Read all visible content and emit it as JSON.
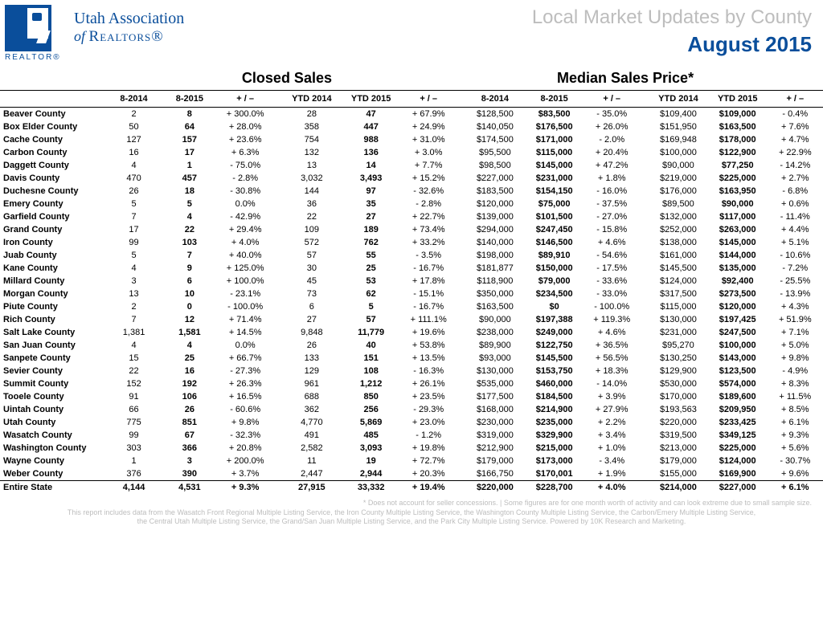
{
  "header": {
    "logo_caption": "REALTOR®",
    "assoc_line1": "Utah Association",
    "assoc_line2_of": "of ",
    "assoc_line2_r": "Realtors®",
    "title_right_1": "Local Market Updates by County",
    "title_right_2": "August 2015"
  },
  "sections": {
    "closed_sales": "Closed Sales",
    "median_price": "Median Sales Price*"
  },
  "columns": {
    "blank": "",
    "g1": [
      "8-2014",
      "8-2015",
      "+ / –"
    ],
    "g2": [
      "YTD 2014",
      "YTD 2015",
      "+ / –"
    ],
    "g3": [
      "8-2014",
      "8-2015",
      "+ / –"
    ],
    "g4": [
      "YTD 2014",
      "YTD 2015",
      "+ / –"
    ]
  },
  "rows": [
    {
      "n": "Beaver County",
      "a": [
        "2",
        "8",
        "+ 300.0%"
      ],
      "b": [
        "28",
        "47",
        "+ 67.9%"
      ],
      "c": [
        "$128,500",
        "$83,500",
        "- 35.0%"
      ],
      "d": [
        "$109,400",
        "$109,000",
        "- 0.4%"
      ]
    },
    {
      "n": "Box Elder County",
      "a": [
        "50",
        "64",
        "+ 28.0%"
      ],
      "b": [
        "358",
        "447",
        "+ 24.9%"
      ],
      "c": [
        "$140,050",
        "$176,500",
        "+ 26.0%"
      ],
      "d": [
        "$151,950",
        "$163,500",
        "+ 7.6%"
      ]
    },
    {
      "n": "Cache County",
      "a": [
        "127",
        "157",
        "+ 23.6%"
      ],
      "b": [
        "754",
        "988",
        "+ 31.0%"
      ],
      "c": [
        "$174,500",
        "$171,000",
        "- 2.0%"
      ],
      "d": [
        "$169,948",
        "$178,000",
        "+ 4.7%"
      ]
    },
    {
      "n": "Carbon County",
      "a": [
        "16",
        "17",
        "+ 6.3%"
      ],
      "b": [
        "132",
        "136",
        "+ 3.0%"
      ],
      "c": [
        "$95,500",
        "$115,000",
        "+ 20.4%"
      ],
      "d": [
        "$100,000",
        "$122,900",
        "+ 22.9%"
      ]
    },
    {
      "n": "Daggett County",
      "a": [
        "4",
        "1",
        "- 75.0%"
      ],
      "b": [
        "13",
        "14",
        "+ 7.7%"
      ],
      "c": [
        "$98,500",
        "$145,000",
        "+ 47.2%"
      ],
      "d": [
        "$90,000",
        "$77,250",
        "- 14.2%"
      ]
    },
    {
      "n": "Davis County",
      "a": [
        "470",
        "457",
        "- 2.8%"
      ],
      "b": [
        "3,032",
        "3,493",
        "+ 15.2%"
      ],
      "c": [
        "$227,000",
        "$231,000",
        "+ 1.8%"
      ],
      "d": [
        "$219,000",
        "$225,000",
        "+ 2.7%"
      ]
    },
    {
      "n": "Duchesne County",
      "a": [
        "26",
        "18",
        "- 30.8%"
      ],
      "b": [
        "144",
        "97",
        "- 32.6%"
      ],
      "c": [
        "$183,500",
        "$154,150",
        "- 16.0%"
      ],
      "d": [
        "$176,000",
        "$163,950",
        "- 6.8%"
      ]
    },
    {
      "n": "Emery County",
      "a": [
        "5",
        "5",
        "0.0%"
      ],
      "b": [
        "36",
        "35",
        "- 2.8%"
      ],
      "c": [
        "$120,000",
        "$75,000",
        "- 37.5%"
      ],
      "d": [
        "$89,500",
        "$90,000",
        "+ 0.6%"
      ]
    },
    {
      "n": "Garfield County",
      "a": [
        "7",
        "4",
        "- 42.9%"
      ],
      "b": [
        "22",
        "27",
        "+ 22.7%"
      ],
      "c": [
        "$139,000",
        "$101,500",
        "- 27.0%"
      ],
      "d": [
        "$132,000",
        "$117,000",
        "- 11.4%"
      ]
    },
    {
      "n": "Grand County",
      "a": [
        "17",
        "22",
        "+ 29.4%"
      ],
      "b": [
        "109",
        "189",
        "+ 73.4%"
      ],
      "c": [
        "$294,000",
        "$247,450",
        "- 15.8%"
      ],
      "d": [
        "$252,000",
        "$263,000",
        "+ 4.4%"
      ]
    },
    {
      "n": "Iron County",
      "a": [
        "99",
        "103",
        "+ 4.0%"
      ],
      "b": [
        "572",
        "762",
        "+ 33.2%"
      ],
      "c": [
        "$140,000",
        "$146,500",
        "+ 4.6%"
      ],
      "d": [
        "$138,000",
        "$145,000",
        "+ 5.1%"
      ]
    },
    {
      "n": "Juab County",
      "a": [
        "5",
        "7",
        "+ 40.0%"
      ],
      "b": [
        "57",
        "55",
        "- 3.5%"
      ],
      "c": [
        "$198,000",
        "$89,910",
        "- 54.6%"
      ],
      "d": [
        "$161,000",
        "$144,000",
        "- 10.6%"
      ]
    },
    {
      "n": "Kane County",
      "a": [
        "4",
        "9",
        "+ 125.0%"
      ],
      "b": [
        "30",
        "25",
        "- 16.7%"
      ],
      "c": [
        "$181,877",
        "$150,000",
        "- 17.5%"
      ],
      "d": [
        "$145,500",
        "$135,000",
        "- 7.2%"
      ]
    },
    {
      "n": "Millard County",
      "a": [
        "3",
        "6",
        "+ 100.0%"
      ],
      "b": [
        "45",
        "53",
        "+ 17.8%"
      ],
      "c": [
        "$118,900",
        "$79,000",
        "- 33.6%"
      ],
      "d": [
        "$124,000",
        "$92,400",
        "- 25.5%"
      ]
    },
    {
      "n": "Morgan County",
      "a": [
        "13",
        "10",
        "- 23.1%"
      ],
      "b": [
        "73",
        "62",
        "- 15.1%"
      ],
      "c": [
        "$350,000",
        "$234,500",
        "- 33.0%"
      ],
      "d": [
        "$317,500",
        "$273,500",
        "- 13.9%"
      ]
    },
    {
      "n": "Piute County",
      "a": [
        "2",
        "0",
        "- 100.0%"
      ],
      "b": [
        "6",
        "5",
        "- 16.7%"
      ],
      "c": [
        "$163,500",
        "$0",
        "- 100.0%"
      ],
      "d": [
        "$115,000",
        "$120,000",
        "+ 4.3%"
      ]
    },
    {
      "n": "Rich County",
      "a": [
        "7",
        "12",
        "+ 71.4%"
      ],
      "b": [
        "27",
        "57",
        "+ 111.1%"
      ],
      "c": [
        "$90,000",
        "$197,388",
        "+ 119.3%"
      ],
      "d": [
        "$130,000",
        "$197,425",
        "+ 51.9%"
      ]
    },
    {
      "n": "Salt Lake County",
      "a": [
        "1,381",
        "1,581",
        "+ 14.5%"
      ],
      "b": [
        "9,848",
        "11,779",
        "+ 19.6%"
      ],
      "c": [
        "$238,000",
        "$249,000",
        "+ 4.6%"
      ],
      "d": [
        "$231,000",
        "$247,500",
        "+ 7.1%"
      ]
    },
    {
      "n": "San Juan County",
      "a": [
        "4",
        "4",
        "0.0%"
      ],
      "b": [
        "26",
        "40",
        "+ 53.8%"
      ],
      "c": [
        "$89,900",
        "$122,750",
        "+ 36.5%"
      ],
      "d": [
        "$95,270",
        "$100,000",
        "+ 5.0%"
      ]
    },
    {
      "n": "Sanpete County",
      "a": [
        "15",
        "25",
        "+ 66.7%"
      ],
      "b": [
        "133",
        "151",
        "+ 13.5%"
      ],
      "c": [
        "$93,000",
        "$145,500",
        "+ 56.5%"
      ],
      "d": [
        "$130,250",
        "$143,000",
        "+ 9.8%"
      ]
    },
    {
      "n": "Sevier County",
      "a": [
        "22",
        "16",
        "- 27.3%"
      ],
      "b": [
        "129",
        "108",
        "- 16.3%"
      ],
      "c": [
        "$130,000",
        "$153,750",
        "+ 18.3%"
      ],
      "d": [
        "$129,900",
        "$123,500",
        "- 4.9%"
      ]
    },
    {
      "n": "Summit County",
      "a": [
        "152",
        "192",
        "+ 26.3%"
      ],
      "b": [
        "961",
        "1,212",
        "+ 26.1%"
      ],
      "c": [
        "$535,000",
        "$460,000",
        "- 14.0%"
      ],
      "d": [
        "$530,000",
        "$574,000",
        "+ 8.3%"
      ]
    },
    {
      "n": "Tooele County",
      "a": [
        "91",
        "106",
        "+ 16.5%"
      ],
      "b": [
        "688",
        "850",
        "+ 23.5%"
      ],
      "c": [
        "$177,500",
        "$184,500",
        "+ 3.9%"
      ],
      "d": [
        "$170,000",
        "$189,600",
        "+ 11.5%"
      ]
    },
    {
      "n": "Uintah County",
      "a": [
        "66",
        "26",
        "- 60.6%"
      ],
      "b": [
        "362",
        "256",
        "- 29.3%"
      ],
      "c": [
        "$168,000",
        "$214,900",
        "+ 27.9%"
      ],
      "d": [
        "$193,563",
        "$209,950",
        "+ 8.5%"
      ]
    },
    {
      "n": "Utah County",
      "a": [
        "775",
        "851",
        "+ 9.8%"
      ],
      "b": [
        "4,770",
        "5,869",
        "+ 23.0%"
      ],
      "c": [
        "$230,000",
        "$235,000",
        "+ 2.2%"
      ],
      "d": [
        "$220,000",
        "$233,425",
        "+ 6.1%"
      ]
    },
    {
      "n": "Wasatch County",
      "a": [
        "99",
        "67",
        "- 32.3%"
      ],
      "b": [
        "491",
        "485",
        "- 1.2%"
      ],
      "c": [
        "$319,000",
        "$329,900",
        "+ 3.4%"
      ],
      "d": [
        "$319,500",
        "$349,125",
        "+ 9.3%"
      ]
    },
    {
      "n": "Washington County",
      "a": [
        "303",
        "366",
        "+ 20.8%"
      ],
      "b": [
        "2,582",
        "3,093",
        "+ 19.8%"
      ],
      "c": [
        "$212,900",
        "$215,000",
        "+ 1.0%"
      ],
      "d": [
        "$213,000",
        "$225,000",
        "+ 5.6%"
      ]
    },
    {
      "n": "Wayne County",
      "a": [
        "1",
        "3",
        "+ 200.0%"
      ],
      "b": [
        "11",
        "19",
        "+ 72.7%"
      ],
      "c": [
        "$179,000",
        "$173,000",
        "- 3.4%"
      ],
      "d": [
        "$179,000",
        "$124,000",
        "- 30.7%"
      ]
    },
    {
      "n": "Weber County",
      "a": [
        "376",
        "390",
        "+ 3.7%"
      ],
      "b": [
        "2,447",
        "2,944",
        "+ 20.3%"
      ],
      "c": [
        "$166,750",
        "$170,001",
        "+ 1.9%"
      ],
      "d": [
        "$155,000",
        "$169,900",
        "+ 9.6%"
      ]
    }
  ],
  "total": {
    "n": "Entire State",
    "a": [
      "4,144",
      "4,531",
      "+ 9.3%"
    ],
    "b": [
      "27,915",
      "33,332",
      "+ 19.4%"
    ],
    "c": [
      "$220,000",
      "$228,700",
      "+ 4.0%"
    ],
    "d": [
      "$214,000",
      "$227,000",
      "+ 6.1%"
    ]
  },
  "footer": {
    "l1": "* Does not account for seller concessions. | Some figures are for one month worth of activity and can look extreme due to small sample size.",
    "l2": "This report includes data from the Wasatch Front Regional Multiple Listing Service, the Iron County Multiple Listing Service, the Washington County Multiple Listing Service, the Carbon/Emery Multiple Listing Service,",
    "l3": "the Central Utah Multiple Listing Service, the Grand/San Juan Multiple Listing Service, and the Park City Multiple Listing Service. Powered by 10K Research and Marketing."
  },
  "colors": {
    "brand": "#0a4e9b",
    "muted": "#bdbdbd"
  }
}
